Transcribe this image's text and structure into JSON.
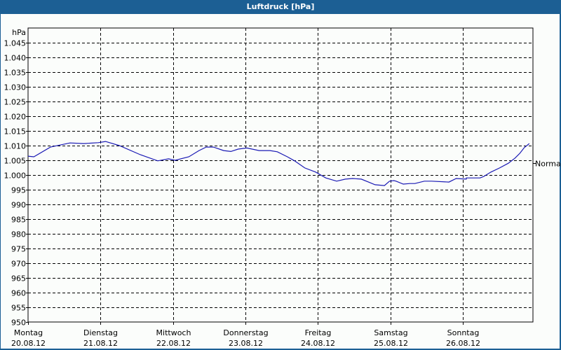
{
  "window": {
    "title": "Luftdruck [hPa]"
  },
  "colors": {
    "frame": "#1c5f94",
    "background": "#fbfdfb",
    "line": "#1a1ab4",
    "grid": "#000000"
  },
  "chart_data": {
    "type": "line",
    "title": "Luftdruck [hPa]",
    "xlabel": "",
    "ylabel": "hPa",
    "ylim": [
      950,
      1050
    ],
    "grid": true,
    "y_ticks": [
      950,
      955,
      960,
      965,
      970,
      975,
      980,
      985,
      990,
      995,
      1000,
      1005,
      1010,
      1015,
      1020,
      1025,
      1030,
      1035,
      1040,
      1045
    ],
    "y_tick_labels": [
      "950",
      "955",
      "960",
      "965",
      "970",
      "975",
      "980",
      "985",
      "990",
      "995",
      "1.000",
      "1.005",
      "1.010",
      "1.015",
      "1.020",
      "1.025",
      "1.030",
      "1.035",
      "1.040",
      "1.045"
    ],
    "x_categories": [
      {
        "day": "Montag",
        "date": "20.08.12"
      },
      {
        "day": "Dienstag",
        "date": "21.08.12"
      },
      {
        "day": "Mittwoch",
        "date": "22.08.12"
      },
      {
        "day": "Donnerstag",
        "date": "23.08.12"
      },
      {
        "day": "Freitag",
        "date": "24.08.12"
      },
      {
        "day": "Samstag",
        "date": "25.08.12"
      },
      {
        "day": "Sonntag",
        "date": "26.08.12"
      }
    ],
    "reference_line": {
      "label": "Normal",
      "value": 1004
    },
    "series": [
      {
        "name": "Luftdruck",
        "x_days": [
          0,
          0.08,
          0.31,
          0.58,
          0.77,
          0.97,
          1.07,
          1.26,
          1.55,
          1.79,
          1.94,
          2.03,
          2.22,
          2.36,
          2.46,
          2.56,
          2.7,
          2.8,
          2.9,
          3.02,
          3.19,
          3.34,
          3.44,
          3.58,
          3.68,
          3.82,
          3.97,
          4.11,
          4.26,
          4.38,
          4.48,
          4.6,
          4.7,
          4.79,
          4.92,
          4.99,
          5.05,
          5.08,
          5.18,
          5.27,
          5.34,
          5.47,
          5.57,
          5.81,
          5.91,
          6.05,
          6.05,
          6.24,
          6.29,
          6.39,
          6.51,
          6.63,
          6.72,
          6.79,
          6.85,
          6.92
        ],
        "values": [
          1006.4,
          1006.2,
          1009.5,
          1010.9,
          1010.7,
          1011.0,
          1011.4,
          1010.0,
          1006.9,
          1004.8,
          1005.5,
          1005.0,
          1006.2,
          1008.3,
          1009.5,
          1009.5,
          1008.3,
          1008.0,
          1008.8,
          1009.2,
          1008.3,
          1008.3,
          1007.9,
          1006.2,
          1004.8,
          1002.4,
          1001.0,
          999.0,
          997.9,
          998.6,
          998.8,
          998.6,
          997.6,
          996.7,
          996.4,
          997.9,
          998.1,
          997.9,
          996.9,
          997.1,
          997.1,
          997.9,
          997.9,
          997.6,
          998.8,
          998.6,
          999.0,
          999.0,
          999.5,
          1001.0,
          1002.4,
          1004.0,
          1005.7,
          1007.4,
          1009.3,
          1010.7
        ]
      }
    ]
  }
}
